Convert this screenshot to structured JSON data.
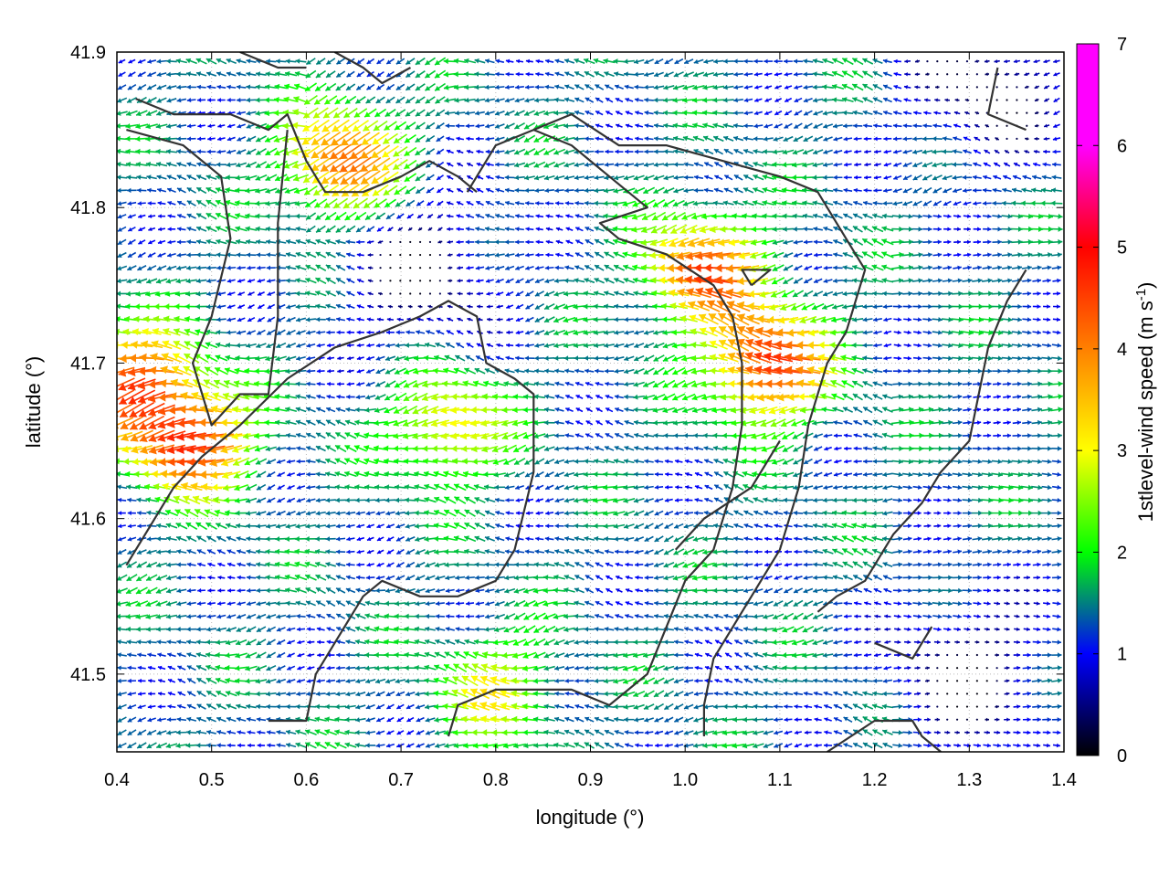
{
  "chart_data": {
    "type": "vector-field",
    "xlabel": "longitude (°)",
    "ylabel": "latitude (°)",
    "xlim": [
      0.4,
      1.4
    ],
    "ylim": [
      41.45,
      41.9
    ],
    "xticks": [
      "0.4",
      "0.5",
      "0.6",
      "0.7",
      "0.8",
      "0.9",
      "1.0",
      "1.1",
      "1.2",
      "1.3",
      "1.4"
    ],
    "yticks": [
      "41.5",
      "41.6",
      "41.7",
      "41.8",
      "41.9"
    ],
    "colorbar": {
      "label_prefix": "1stlevel-wind speed (m s",
      "label_exp": "-1",
      "label_suffix": ")",
      "range": [
        0,
        7
      ],
      "ticks": [
        "0",
        "1",
        "2",
        "3",
        "4",
        "5",
        "6",
        "7"
      ],
      "palette": [
        "#000000",
        "#0000ff",
        "#00ff00",
        "#ffff00",
        "#ff8000",
        "#ff0000",
        "#ff00ff"
      ]
    },
    "grid": "dotted",
    "vector_grid": {
      "lon_step": 0.0105,
      "lat_step": 0.0083
    },
    "speed_maxima": [
      {
        "lon": 0.42,
        "lat": 41.69,
        "speed": 4.2
      },
      {
        "lon": 0.48,
        "lat": 41.65,
        "speed": 4.6
      },
      {
        "lon": 0.64,
        "lat": 41.83,
        "speed": 4.2
      },
      {
        "lon": 1.02,
        "lat": 41.76,
        "speed": 4.3
      },
      {
        "lon": 1.09,
        "lat": 41.7,
        "speed": 4.8
      },
      {
        "lon": 0.75,
        "lat": 41.66,
        "speed": 3.3
      },
      {
        "lon": 0.8,
        "lat": 41.49,
        "speed": 2.9
      }
    ],
    "speed_minima": [
      {
        "lon": 0.72,
        "lat": 41.76,
        "speed": 0.2
      },
      {
        "lon": 1.32,
        "lat": 41.88,
        "speed": 0.2
      },
      {
        "lon": 1.3,
        "lat": 41.5,
        "speed": 0.6
      }
    ],
    "coastlines": [
      [
        [
          0.42,
          41.87
        ],
        [
          0.46,
          41.86
        ],
        [
          0.52,
          41.86
        ],
        [
          0.56,
          41.85
        ],
        [
          0.58,
          41.86
        ],
        [
          0.6,
          41.83
        ],
        [
          0.62,
          41.81
        ],
        [
          0.66,
          41.81
        ],
        [
          0.7,
          41.82
        ],
        [
          0.73,
          41.83
        ],
        [
          0.76,
          41.82
        ],
        [
          0.78,
          41.81
        ]
      ],
      [
        [
          0.41,
          41.85
        ],
        [
          0.47,
          41.84
        ],
        [
          0.51,
          41.82
        ],
        [
          0.52,
          41.78
        ],
        [
          0.5,
          41.73
        ],
        [
          0.48,
          41.7
        ],
        [
          0.5,
          41.66
        ],
        [
          0.53,
          41.68
        ],
        [
          0.56,
          41.68
        ],
        [
          0.57,
          41.73
        ],
        [
          0.57,
          41.79
        ],
        [
          0.58,
          41.85
        ]
      ],
      [
        [
          0.41,
          41.57
        ],
        [
          0.43,
          41.59
        ],
        [
          0.46,
          41.62
        ],
        [
          0.49,
          41.64
        ],
        [
          0.53,
          41.66
        ],
        [
          0.58,
          41.69
        ],
        [
          0.63,
          41.71
        ],
        [
          0.68,
          41.72
        ],
        [
          0.72,
          41.73
        ],
        [
          0.75,
          41.74
        ],
        [
          0.78,
          41.73
        ],
        [
          0.79,
          41.7
        ],
        [
          0.82,
          41.69
        ],
        [
          0.84,
          41.68
        ],
        [
          0.84,
          41.63
        ],
        [
          0.82,
          41.58
        ],
        [
          0.8,
          41.56
        ],
        [
          0.76,
          41.55
        ],
        [
          0.72,
          41.55
        ],
        [
          0.68,
          41.56
        ],
        [
          0.66,
          41.55
        ],
        [
          0.63,
          41.52
        ],
        [
          0.61,
          41.5
        ],
        [
          0.6,
          41.47
        ],
        [
          0.56,
          41.47
        ]
      ],
      [
        [
          0.75,
          41.46
        ],
        [
          0.76,
          41.48
        ],
        [
          0.8,
          41.49
        ],
        [
          0.88,
          41.49
        ],
        [
          0.92,
          41.48
        ],
        [
          0.96,
          41.5
        ],
        [
          0.98,
          41.53
        ],
        [
          1.0,
          41.56
        ],
        [
          1.03,
          41.58
        ],
        [
          1.05,
          41.62
        ],
        [
          1.06,
          41.66
        ],
        [
          1.06,
          41.7
        ],
        [
          1.05,
          41.73
        ],
        [
          1.03,
          41.75
        ],
        [
          0.98,
          41.77
        ],
        [
          0.93,
          41.78
        ],
        [
          0.91,
          41.79
        ],
        [
          0.96,
          41.8
        ],
        [
          0.92,
          41.82
        ],
        [
          0.88,
          41.84
        ],
        [
          0.84,
          41.85
        ],
        [
          0.8,
          41.84
        ],
        [
          0.77,
          41.81
        ]
      ],
      [
        [
          0.84,
          41.85
        ],
        [
          0.88,
          41.86
        ],
        [
          0.93,
          41.84
        ],
        [
          0.98,
          41.84
        ],
        [
          1.04,
          41.83
        ],
        [
          1.1,
          41.82
        ],
        [
          1.14,
          41.81
        ],
        [
          1.17,
          41.78
        ],
        [
          1.19,
          41.76
        ],
        [
          1.17,
          41.72
        ],
        [
          1.15,
          41.7
        ],
        [
          1.13,
          41.66
        ],
        [
          1.12,
          41.62
        ],
        [
          1.1,
          41.58
        ],
        [
          1.07,
          41.55
        ],
        [
          1.05,
          41.53
        ],
        [
          1.03,
          41.51
        ],
        [
          1.02,
          41.48
        ],
        [
          1.02,
          41.46
        ]
      ],
      [
        [
          0.99,
          41.58
        ],
        [
          1.02,
          41.6
        ],
        [
          1.07,
          41.62
        ],
        [
          1.1,
          41.65
        ]
      ],
      [
        [
          1.07,
          41.75
        ],
        [
          1.09,
          41.76
        ],
        [
          1.06,
          41.76
        ],
        [
          1.07,
          41.75
        ]
      ],
      [
        [
          1.15,
          41.45
        ],
        [
          1.2,
          41.47
        ],
        [
          1.24,
          41.47
        ],
        [
          1.25,
          41.46
        ],
        [
          1.27,
          41.45
        ]
      ],
      [
        [
          1.2,
          41.52
        ],
        [
          1.24,
          41.51
        ],
        [
          1.25,
          41.52
        ],
        [
          1.26,
          41.53
        ],
        [
          1.24,
          41.51
        ]
      ],
      [
        [
          1.36,
          41.76
        ],
        [
          1.34,
          41.74
        ],
        [
          1.32,
          41.71
        ],
        [
          1.31,
          41.68
        ],
        [
          1.3,
          41.65
        ],
        [
          1.27,
          41.63
        ],
        [
          1.25,
          41.61
        ],
        [
          1.22,
          41.59
        ],
        [
          1.19,
          41.56
        ],
        [
          1.16,
          41.55
        ],
        [
          1.14,
          41.54
        ]
      ],
      [
        [
          1.33,
          41.89
        ],
        [
          1.32,
          41.86
        ],
        [
          1.36,
          41.85
        ]
      ],
      [
        [
          0.53,
          41.9
        ],
        [
          0.57,
          41.89
        ],
        [
          0.6,
          41.89
        ]
      ],
      [
        [
          0.63,
          41.9
        ],
        [
          0.66,
          41.89
        ],
        [
          0.68,
          41.88
        ],
        [
          0.71,
          41.89
        ]
      ]
    ]
  }
}
